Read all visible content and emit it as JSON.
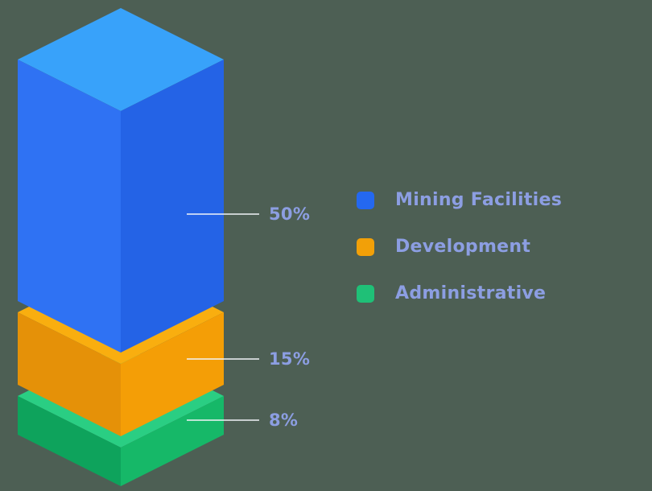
{
  "theme": {
    "background": "#4d5f54",
    "label_color": "#8c9ee2",
    "leader_line_color": "#f2f4f8"
  },
  "chart_data": {
    "type": "bar",
    "variant": "3d-isometric-stacked-column",
    "title": "",
    "legend_position": "right",
    "categories": [
      "Mining Facilities",
      "Development",
      "Administrative"
    ],
    "series": [
      {
        "name": "Mining Facilities",
        "value": 50,
        "pct_label": "50%",
        "color": "#2468f0",
        "face_top": "#38a2fa",
        "face_left": "#2f72f3",
        "face_right": "#2463e6"
      },
      {
        "name": "Development",
        "value": 15,
        "pct_label": "15%",
        "color": "#f2a008",
        "face_top": "#f9ae0f",
        "face_left": "#e59108",
        "face_right": "#f49e06"
      },
      {
        "name": "Administrative",
        "value": 8,
        "pct_label": "8%",
        "color": "#1fc077",
        "face_top": "#2ace83",
        "face_left": "#0ea35c",
        "face_right": "#16b868"
      }
    ]
  }
}
